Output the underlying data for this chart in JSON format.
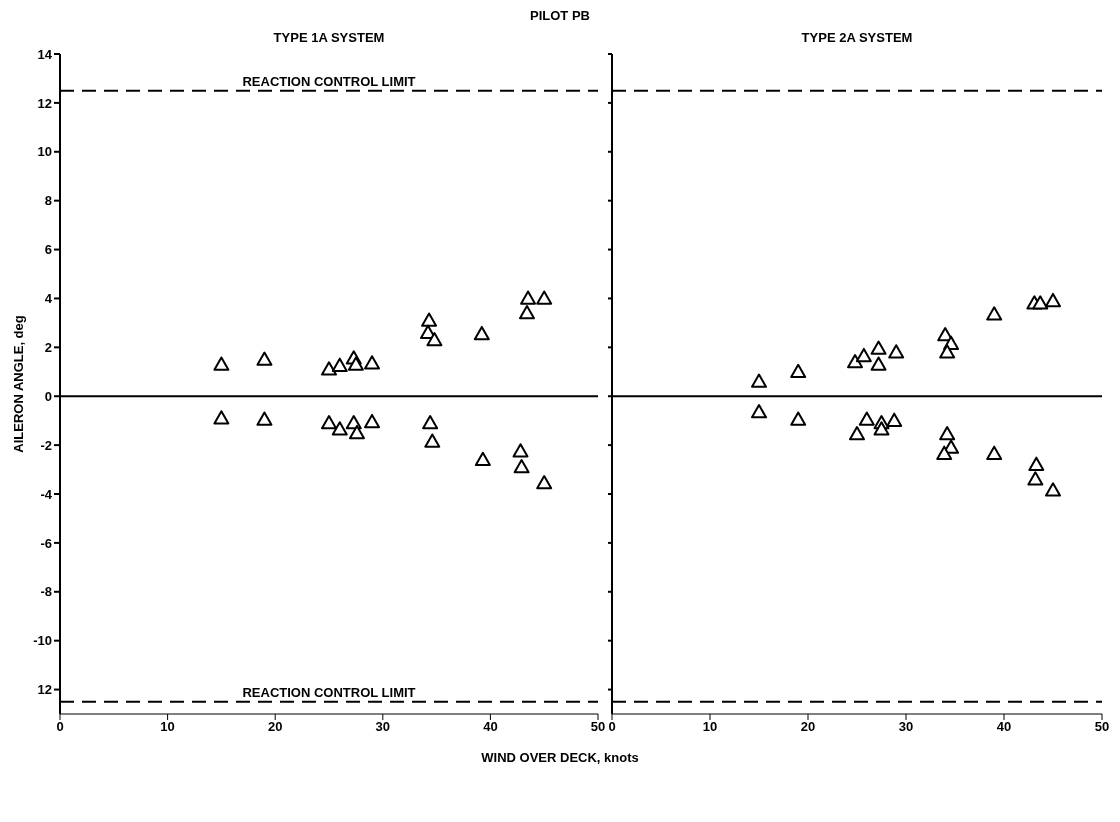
{
  "chart_data": [
    {
      "type": "scatter",
      "title": "TYPE 1A SYSTEM",
      "annotations": [
        "PILOT PB"
      ],
      "xlabel": "WIND OVER DECK, knots",
      "ylabel": "AILERON ANGLE, deg",
      "xlim": [
        0,
        50
      ],
      "xticks": [
        0,
        10,
        20,
        30,
        40,
        50
      ],
      "ylim": [
        -13,
        14
      ],
      "yticks": [
        {
          "value": -12,
          "label": "12"
        },
        -10,
        -8,
        -6,
        -4,
        -2,
        0,
        2,
        4,
        6,
        8,
        10,
        12,
        14
      ],
      "grid": false,
      "legend": false,
      "marker": "triangle",
      "series": [
        {
          "color": "#000000",
          "x": [
            15,
            19,
            25,
            26,
            27.3,
            27.5,
            29,
            34.3,
            34.2,
            34.8,
            39.2,
            43.5,
            43.4,
            45,
            15,
            19,
            25,
            26,
            27.3,
            27.6,
            29,
            34.4,
            34.6,
            39.3,
            42.8,
            42.9,
            45
          ],
          "values": [
            1.3,
            1.5,
            1.1,
            1.25,
            1.55,
            1.3,
            1.35,
            3.1,
            2.6,
            2.3,
            2.55,
            4.0,
            3.4,
            4.0,
            -0.9,
            -0.95,
            -1.1,
            -1.35,
            -1.1,
            -1.5,
            -1.05,
            -1.1,
            -1.85,
            -2.6,
            -2.25,
            -2.9,
            -3.55
          ]
        }
      ],
      "ref_lines": [
        {
          "axis": "y",
          "value": 12.5,
          "label": "REACTION CONTROL LIMIT",
          "color": "#000000",
          "line_style": "dashed"
        },
        {
          "axis": "y",
          "value": -12.5,
          "label": "REACTION CONTROL LIMIT",
          "color": "#000000",
          "line_style": "dashed"
        },
        {
          "axis": "y",
          "value": 0,
          "label": null,
          "color": "#000000",
          "line_style": "solid"
        }
      ]
    },
    {
      "type": "scatter",
      "title": "TYPE 2A SYSTEM",
      "xlim": [
        0,
        50
      ],
      "xticks": [
        0,
        10,
        20,
        30,
        40,
        50
      ],
      "ylim": [
        -13,
        14
      ],
      "yticks": [
        -12,
        -10,
        -8,
        -6,
        -4,
        -2,
        0,
        2,
        4,
        6,
        8,
        10,
        12,
        14
      ],
      "tick_labels": "x",
      "grid": false,
      "legend": false,
      "marker": "triangle",
      "series": [
        {
          "color": "#000000",
          "x": [
            15,
            19,
            24.8,
            25.7,
            27.2,
            27.2,
            29,
            34,
            34.6,
            34.2,
            39,
            43.1,
            43.7,
            45,
            15,
            19,
            25,
            26,
            27.5,
            27.5,
            28.8,
            34.2,
            34.6,
            33.9,
            39,
            43.3,
            43.2,
            45
          ],
          "values": [
            0.6,
            1.0,
            1.4,
            1.65,
            1.95,
            1.3,
            1.8,
            2.5,
            2.15,
            1.8,
            3.35,
            3.8,
            3.8,
            3.9,
            -0.65,
            -0.95,
            -1.55,
            -0.95,
            -1.1,
            -1.35,
            -1.0,
            -1.55,
            -2.1,
            -2.35,
            -2.35,
            -2.8,
            -3.4,
            -3.85
          ]
        }
      ],
      "ref_lines": [
        {
          "axis": "y",
          "value": 12.5,
          "label": null,
          "color": "#000000",
          "line_style": "dashed"
        },
        {
          "axis": "y",
          "value": -12.5,
          "label": null,
          "color": "#000000",
          "line_style": "dashed"
        },
        {
          "axis": "y",
          "value": 0,
          "label": null,
          "color": "#000000",
          "line_style": "solid"
        }
      ]
    }
  ]
}
